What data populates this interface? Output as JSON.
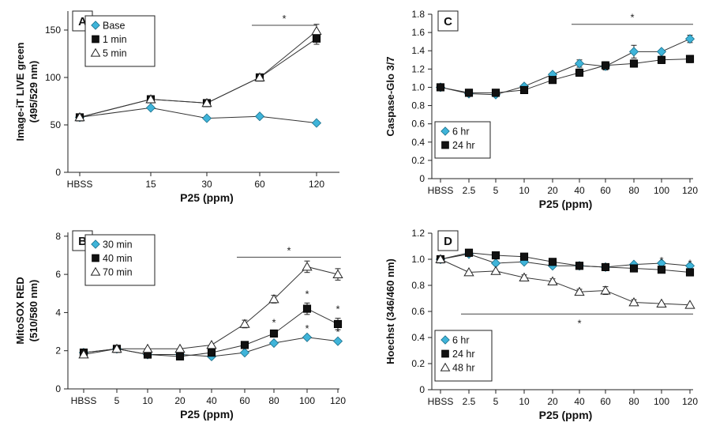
{
  "colors": {
    "base_series": "#3fb4d9",
    "dark_series": "#111111",
    "line": "#333333",
    "open_series": "#ffffff"
  },
  "chart_data": [
    {
      "panel": "A",
      "type": "line",
      "categories": [
        "HBSS",
        "15",
        "30",
        "60",
        "120"
      ],
      "xlabel": "P25 (ppm)",
      "ylabel": [
        "Image-iT LIVE green",
        "(495/529 nm)"
      ],
      "ylim": [
        0,
        170
      ],
      "yticks": [
        0,
        50,
        100,
        150
      ],
      "legend": "top-left",
      "series": [
        {
          "name": "Base",
          "marker": "diamond",
          "values": [
            58,
            68,
            57,
            59,
            52
          ]
        },
        {
          "name": "1 min",
          "marker": "square",
          "values": [
            58,
            77,
            73,
            100,
            141
          ],
          "err": [
            0,
            0,
            0,
            3,
            6
          ]
        },
        {
          "name": "5 min",
          "marker": "triangle",
          "values": [
            58,
            77,
            73,
            100,
            149
          ],
          "err": [
            0,
            0,
            0,
            3,
            7
          ]
        }
      ],
      "significance": {
        "label": "*",
        "from": "60",
        "to": "120",
        "y": 155
      }
    },
    {
      "panel": "B",
      "type": "line",
      "categories": [
        "HBSS",
        "5",
        "10",
        "20",
        "40",
        "60",
        "80",
        "100",
        "120"
      ],
      "xlabel": "P25 (ppm)",
      "ylabel": [
        "MitoSOX RED",
        "(510/580 nm)"
      ],
      "ylim": [
        0,
        8.2
      ],
      "yticks": [
        0,
        2,
        4,
        6,
        8
      ],
      "legend": "top-left",
      "series": [
        {
          "name": "30 min",
          "marker": "diamond",
          "values": [
            1.9,
            2.1,
            1.8,
            1.8,
            1.7,
            1.9,
            2.4,
            2.7,
            2.5
          ],
          "stars": [
            false,
            false,
            false,
            false,
            false,
            false,
            false,
            true,
            true
          ]
        },
        {
          "name": "40 min",
          "marker": "square",
          "values": [
            1.9,
            2.1,
            1.8,
            1.7,
            1.9,
            2.3,
            2.9,
            4.2,
            3.4
          ],
          "err": [
            0,
            0,
            0,
            0,
            0,
            0.1,
            0.1,
            0.3,
            0.3
          ],
          "stars": [
            false,
            false,
            false,
            false,
            false,
            false,
            true,
            true,
            true
          ]
        },
        {
          "name": "70 min",
          "marker": "triangle",
          "values": [
            1.8,
            2.1,
            2.1,
            2.1,
            2.3,
            3.4,
            4.7,
            6.4,
            6.0
          ],
          "err": [
            0,
            0,
            0,
            0,
            0,
            0.2,
            0.2,
            0.3,
            0.3
          ]
        }
      ],
      "significance": {
        "label": "*",
        "from": "60",
        "to": "120",
        "y": 6.9
      }
    },
    {
      "panel": "C",
      "type": "line",
      "categories": [
        "HBSS",
        "2.5",
        "5",
        "10",
        "20",
        "40",
        "60",
        "80",
        "100",
        "120"
      ],
      "xlabel": "P25 (ppm)",
      "ylabel": [
        "Caspase-Glo 3/7"
      ],
      "ylim": [
        0,
        1.8
      ],
      "yticks": [
        0,
        0.2,
        0.4,
        0.6,
        0.8,
        1.0,
        1.2,
        1.4,
        1.6,
        1.8
      ],
      "legend": "bottom-left",
      "series": [
        {
          "name": "6 hr",
          "marker": "diamond",
          "values": [
            1.0,
            0.93,
            0.92,
            1.01,
            1.14,
            1.26,
            1.23,
            1.39,
            1.39,
            1.53
          ],
          "err": [
            0,
            0,
            0,
            0,
            0,
            0.04,
            0.04,
            0.07,
            0,
            0.04
          ]
        },
        {
          "name": "24 hr",
          "marker": "square",
          "values": [
            1.0,
            0.94,
            0.94,
            0.97,
            1.08,
            1.16,
            1.24,
            1.26,
            1.3,
            1.31
          ],
          "err": [
            0,
            0,
            0,
            0,
            0,
            0.04,
            0.04,
            0.04,
            0.04,
            0.04
          ]
        }
      ],
      "significance": {
        "label": "*",
        "from": "40",
        "to": "120",
        "y": 1.69
      }
    },
    {
      "panel": "D",
      "type": "line",
      "categories": [
        "HBSS",
        "2.5",
        "5",
        "10",
        "20",
        "40",
        "60",
        "80",
        "100",
        "120"
      ],
      "xlabel": "P25 (ppm)",
      "ylabel": [
        "Hoechst (346/460 nm)"
      ],
      "ylim": [
        0,
        1.2
      ],
      "yticks": [
        0,
        0.2,
        0.4,
        0.6,
        0.8,
        1.0,
        1.2
      ],
      "legend": "bottom-left",
      "series": [
        {
          "name": "6 hr",
          "marker": "diamond",
          "values": [
            1.0,
            1.04,
            0.97,
            0.98,
            0.95,
            0.95,
            0.94,
            0.96,
            0.97,
            0.95
          ]
        },
        {
          "name": "24 hr",
          "marker": "square",
          "values": [
            1.0,
            1.05,
            1.03,
            1.02,
            0.98,
            0.95,
            0.94,
            0.93,
            0.92,
            0.9
          ],
          "stars": [
            false,
            false,
            false,
            false,
            false,
            false,
            false,
            false,
            true,
            true
          ]
        },
        {
          "name": "48 hr",
          "marker": "triangle",
          "values": [
            1.0,
            0.9,
            0.91,
            0.86,
            0.83,
            0.75,
            0.76,
            0.67,
            0.66,
            0.65
          ],
          "err": [
            0,
            0,
            0,
            0.02,
            0.02,
            0.02,
            0.03,
            0.02,
            0,
            0
          ]
        }
      ],
      "significance": {
        "label": "*",
        "from": "2.5",
        "to": "120",
        "y": 0.58,
        "label_at": "40"
      }
    }
  ]
}
